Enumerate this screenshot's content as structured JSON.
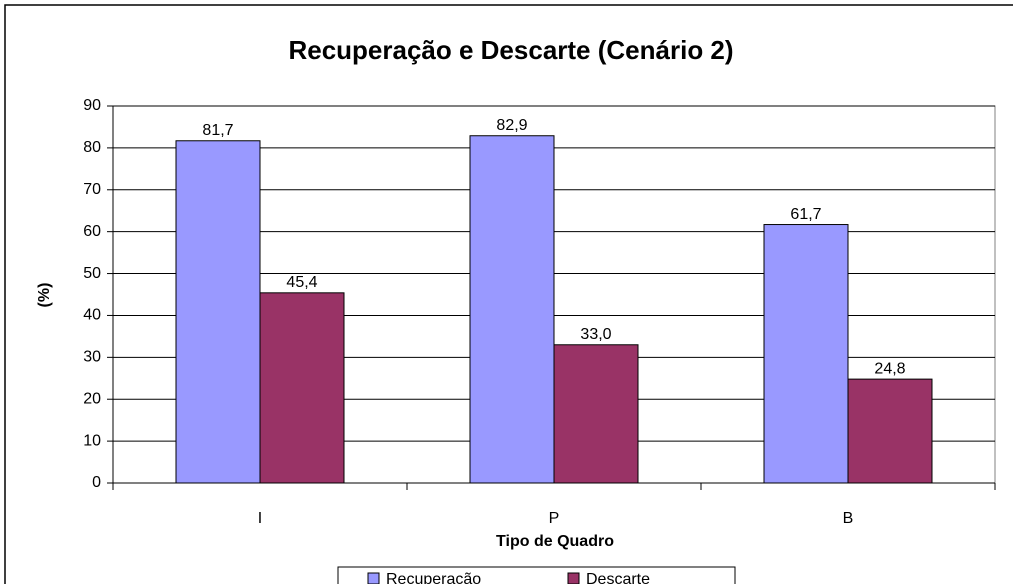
{
  "chart_data": {
    "type": "bar",
    "title": "Recuperação e Descarte (Cenário 2)",
    "x_label": "Tipo de Quadro",
    "y_label": "(%)",
    "categories": [
      "I",
      "P",
      "B"
    ],
    "series": [
      {
        "name": "Recuperação",
        "color": "#9999ff",
        "values": [
          81.7,
          82.9,
          61.7
        ],
        "value_labels": [
          "81,7",
          "82,9",
          "61,7"
        ]
      },
      {
        "name": "Descarte",
        "color": "#993366",
        "values": [
          45.4,
          33.0,
          24.8
        ],
        "value_labels": [
          "45,4",
          "33,0",
          "24,8"
        ]
      }
    ],
    "ylim": [
      0,
      90
    ],
    "yticks": [
      0,
      10,
      20,
      30,
      40,
      50,
      60,
      70,
      80,
      90
    ],
    "grid": true
  }
}
